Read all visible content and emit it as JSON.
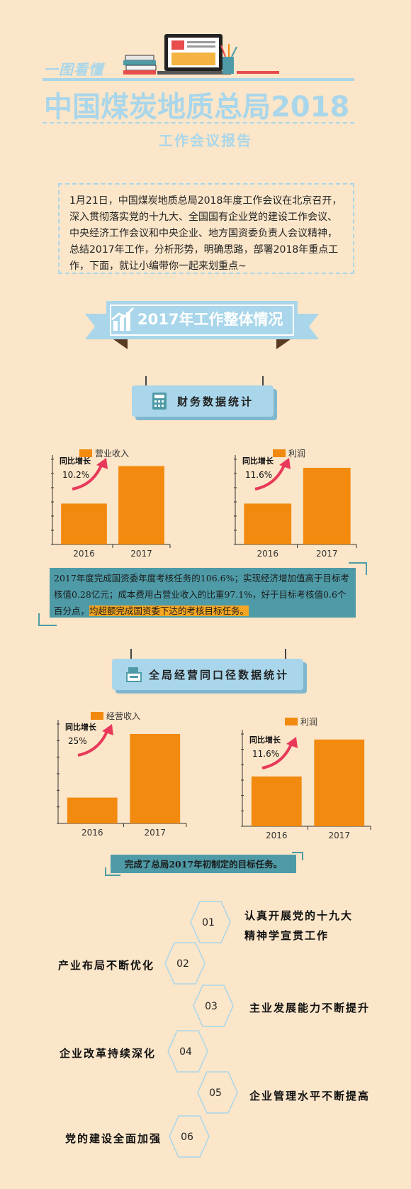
{
  "header": {
    "tag": "一图看懂",
    "title": "中国煤炭地质总局2018",
    "subtitle": "工作会议报告"
  },
  "intro_text": "1月21日，中国煤炭地质总局2018年度工作会议在北京召开，深入贯彻落实党的十九大、全国国有企业党的建设工作会议、中央经济工作会议和中央企业、地方国资委负责人会议精神，总结2017年工作，分析形势，明确思路，部署2018年重点工作，下面，就让小编带你一起来划重点~",
  "section_banner": "2017年工作整体情况",
  "finance_section": {
    "label": "财务数据统计",
    "note_plain": "2017年度完成国资委年度考核任务的106.6%；实现经济增加值高于目标考核值0.28亿元；成本费用占营业收入的比重97.1%，好于目标考核值0.6个百分点，",
    "note_highlight": "均超额完成国资委下达的考核目标任务。"
  },
  "ops_section": {
    "label": "全局经营同口径数据统计",
    "note": "完成了总局2017年初制定的目标任务。"
  },
  "colors": {
    "bar": "#f28a0f",
    "accent_blue": "#a9d6ea",
    "teal": "#4e9ba7",
    "arrow": "#e8395a"
  },
  "chart_data": [
    {
      "type": "bar",
      "series": [
        {
          "name": "营业收入",
          "values": [
            null,
            null
          ]
        }
      ],
      "categories": [
        "2016",
        "2017"
      ],
      "annotation_label": "同比增长",
      "annotation_value": "10.2%",
      "relative_heights": [
        0.48,
        0.92
      ]
    },
    {
      "type": "bar",
      "series": [
        {
          "name": "利润",
          "values": [
            null,
            null
          ]
        }
      ],
      "categories": [
        "2016",
        "2017"
      ],
      "annotation_label": "同比增长",
      "annotation_value": "11.6%",
      "relative_heights": [
        0.48,
        0.9
      ]
    },
    {
      "type": "bar",
      "series": [
        {
          "name": "经营收入",
          "values": [
            null,
            null
          ]
        }
      ],
      "categories": [
        "2016",
        "2017"
      ],
      "annotation_label": "同比增长",
      "annotation_value": "25%",
      "relative_heights": [
        0.26,
        0.9
      ]
    },
    {
      "type": "bar",
      "series": [
        {
          "name": "利润",
          "values": [
            null,
            null
          ]
        }
      ],
      "categories": [
        "2016",
        "2017"
      ],
      "annotation_label": "同比增长",
      "annotation_value": "11.6%",
      "relative_heights": [
        0.54,
        0.94
      ]
    }
  ],
  "key_points": [
    {
      "num": "01",
      "text": "认真开展党的十九大精神学宣贯工作"
    },
    {
      "num": "02",
      "text": "产业布局不断优化"
    },
    {
      "num": "03",
      "text": "主业发展能力不断提升"
    },
    {
      "num": "04",
      "text": "企业改革持续深化"
    },
    {
      "num": "05",
      "text": "企业管理水平不断提高"
    },
    {
      "num": "06",
      "text": "党的建设全面加强"
    }
  ]
}
